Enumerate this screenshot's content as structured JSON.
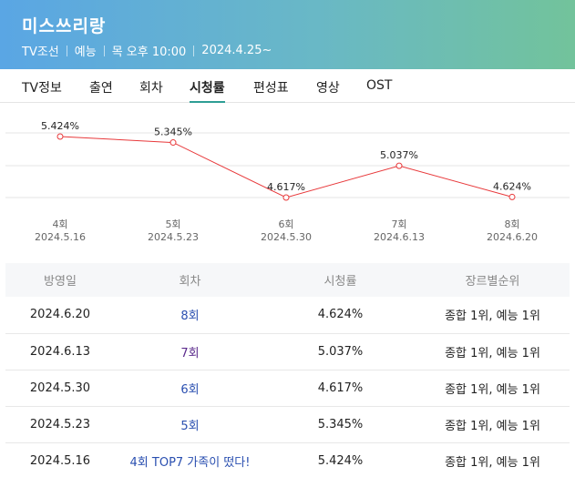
{
  "program": {
    "title": "미스쓰리랑",
    "channel": "TV조선",
    "genre": "예능",
    "schedule": "목 오후 10:00",
    "start_date": "2024.4.25~"
  },
  "tabs": [
    {
      "label": "TV정보",
      "active": false
    },
    {
      "label": "출연",
      "active": false
    },
    {
      "label": "회차",
      "active": false
    },
    {
      "label": "시청률",
      "active": true
    },
    {
      "label": "편성표",
      "active": false
    },
    {
      "label": "영상",
      "active": false
    },
    {
      "label": "OST",
      "active": false
    }
  ],
  "chart_data": {
    "type": "line",
    "title": "",
    "categories": [
      "4회",
      "5회",
      "6회",
      "7회",
      "8회"
    ],
    "dates": [
      "2024.5.16",
      "2024.5.23",
      "2024.5.30",
      "2024.6.13",
      "2024.6.20"
    ],
    "values": [
      5.424,
      5.345,
      4.617,
      5.037,
      4.624
    ],
    "value_labels": [
      "5.424%",
      "5.345%",
      "4.617%",
      "5.037%",
      "4.624%"
    ],
    "xlabel": "",
    "ylabel": "",
    "line_color": "#e8393b",
    "grid": true
  },
  "table": {
    "headers": [
      "방영일",
      "회차",
      "시청률",
      "장르별순위"
    ],
    "rows": [
      {
        "date": "2024.6.20",
        "episode": "8회",
        "rating": "4.624%",
        "rank": "종합 1위, 예능 1위"
      },
      {
        "date": "2024.6.13",
        "episode": "7회",
        "rating": "5.037%",
        "rank": "종합 1위, 예능 1위"
      },
      {
        "date": "2024.5.30",
        "episode": "6회",
        "rating": "4.617%",
        "rank": "종합 1위, 예능 1위"
      },
      {
        "date": "2024.5.23",
        "episode": "5회",
        "rating": "5.345%",
        "rank": "종합 1위, 예능 1위"
      },
      {
        "date": "2024.5.16",
        "episode": "4회 TOP7 가족이 떴다!",
        "rating": "5.424%",
        "rank": "종합 1위, 예능 1위"
      }
    ]
  }
}
